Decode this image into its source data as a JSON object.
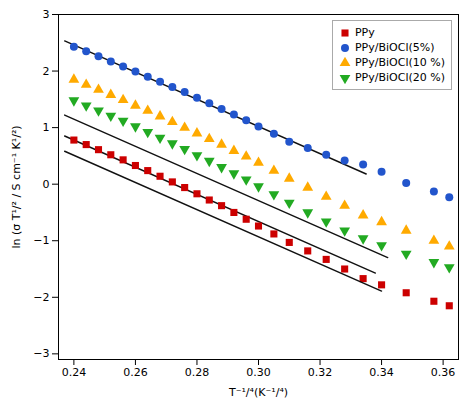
{
  "chart_data": {
    "type": "scatter",
    "x_label": "T⁻¹/⁴(K⁻¹/⁴)",
    "y_label": "ln (σ T¹/² / S cm⁻¹ K¹/²)",
    "xlim": [
      0.235,
      0.365
    ],
    "ylim": [
      -3.1,
      3.0
    ],
    "xticks": [
      0.24,
      0.26,
      0.28,
      {
        "value": 0.3,
        "label": "0.30"
      },
      0.32,
      0.34,
      0.36
    ],
    "yticks": [
      -3,
      -2,
      -1,
      0,
      1,
      2,
      3
    ],
    "grid": false,
    "legend": "upper right",
    "series": [
      {
        "name": "PPy",
        "color": "#cc0000",
        "marker": "square",
        "x": [
          0.24,
          0.244,
          0.248,
          0.252,
          0.256,
          0.26,
          0.264,
          0.268,
          0.272,
          0.276,
          0.28,
          0.284,
          0.288,
          0.292,
          0.296,
          0.3,
          0.305,
          0.31,
          0.316,
          0.322,
          0.328,
          0.334,
          0.34,
          0.348,
          0.357,
          0.362
        ],
        "values": [
          0.78,
          0.7,
          0.61,
          0.52,
          0.43,
          0.33,
          0.24,
          0.14,
          0.04,
          -0.06,
          -0.17,
          -0.28,
          -0.38,
          -0.5,
          -0.62,
          -0.74,
          -0.88,
          -1.03,
          -1.18,
          -1.33,
          -1.5,
          -1.67,
          -1.78,
          -1.92,
          -2.07,
          -2.15
        ],
        "fit": {
          "type": "line",
          "color": "#111111",
          "x": [
            0.237,
            0.338
          ],
          "values": [
            0.852,
            -1.572
          ]
        }
      },
      {
        "name": "PPy/BiOCl(5%)",
        "color": "#2255cc",
        "marker": "circle",
        "x": [
          0.24,
          0.244,
          0.248,
          0.252,
          0.256,
          0.26,
          0.264,
          0.268,
          0.272,
          0.276,
          0.28,
          0.284,
          0.288,
          0.292,
          0.296,
          0.3,
          0.305,
          0.31,
          0.316,
          0.322,
          0.328,
          0.334,
          0.34,
          0.348,
          0.357,
          0.362
        ],
        "values": [
          2.43,
          2.35,
          2.26,
          2.17,
          2.08,
          1.99,
          1.9,
          1.81,
          1.72,
          1.63,
          1.53,
          1.43,
          1.33,
          1.23,
          1.13,
          1.02,
          0.89,
          0.75,
          0.64,
          0.52,
          0.42,
          0.35,
          0.22,
          0.02,
          -0.13,
          -0.23
        ],
        "fit": {
          "type": "line",
          "color": "#111111",
          "x": [
            0.237,
            0.335
          ],
          "values": [
            2.532,
            0.18
          ]
        }
      },
      {
        "name": "PPy/BiOCl(10 %)",
        "color": "#ffaa00",
        "marker": "triangle-up",
        "x": [
          0.24,
          0.244,
          0.248,
          0.252,
          0.256,
          0.26,
          0.264,
          0.268,
          0.272,
          0.276,
          0.28,
          0.284,
          0.288,
          0.292,
          0.296,
          0.3,
          0.305,
          0.31,
          0.316,
          0.322,
          0.328,
          0.334,
          0.34,
          0.348,
          0.357,
          0.362
        ],
        "values": [
          1.85,
          1.76,
          1.67,
          1.58,
          1.49,
          1.39,
          1.3,
          1.2,
          1.1,
          1.0,
          0.9,
          0.8,
          0.7,
          0.59,
          0.49,
          0.38,
          0.24,
          0.1,
          -0.06,
          -0.22,
          -0.38,
          -0.55,
          -0.67,
          -0.82,
          -1.0,
          -1.1
        ],
        "fit": {
          "type": "line",
          "color": "#111111",
          "x": [
            0.237,
            0.342
          ],
          "values": [
            1.222,
            -1.298
          ]
        }
      },
      {
        "name": "PPy/BiOCl(20 %)",
        "color": "#22aa22",
        "marker": "triangle-down",
        "x": [
          0.24,
          0.244,
          0.248,
          0.252,
          0.256,
          0.26,
          0.264,
          0.268,
          0.272,
          0.276,
          0.28,
          0.284,
          0.288,
          0.292,
          0.296,
          0.3,
          0.305,
          0.31,
          0.316,
          0.322,
          0.328,
          0.334,
          0.34,
          0.348,
          0.357,
          0.362
        ],
        "values": [
          1.48,
          1.39,
          1.3,
          1.21,
          1.12,
          1.02,
          0.92,
          0.82,
          0.72,
          0.62,
          0.51,
          0.41,
          0.3,
          0.19,
          0.08,
          -0.04,
          -0.18,
          -0.33,
          -0.5,
          -0.66,
          -0.82,
          -0.96,
          -1.08,
          -1.23,
          -1.38,
          -1.47
        ],
        "fit": {
          "type": "line",
          "color": "#111111",
          "x": [
            0.237,
            0.34
          ],
          "values": [
            0.582,
            -1.89
          ]
        }
      }
    ]
  }
}
